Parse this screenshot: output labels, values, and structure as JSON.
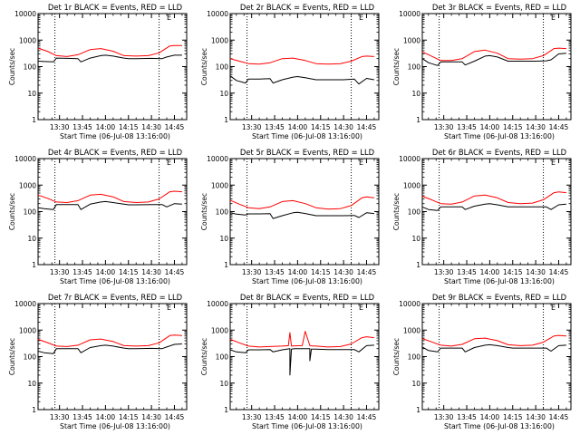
{
  "panel_labels": {
    "x_ticks": [
      "13:30",
      "13:45",
      "14:00",
      "14:15",
      "14:30",
      "14:45"
    ],
    "y_ticks": [
      "1",
      "10",
      "100",
      "1000",
      "10000"
    ],
    "y_label": "Counts/sec",
    "x_label": "Start Time (06-Jul-08 13:16:00)",
    "e_marker": "E"
  },
  "chart_data": [
    {
      "type": "line",
      "title": "Det 1r BLACK = Events, RED = LLD",
      "xlabel": "Start Time (06-Jul-08 13:16:00)",
      "ylabel": "Counts/sec",
      "yscale": "log",
      "ylim": [
        1,
        10000
      ],
      "vlines": [
        "13:27",
        "14:35"
      ],
      "series": [
        {
          "name": "BLACK = Events",
          "color": "#000000",
          "x": [
            "13:16",
            "13:20",
            "13:26",
            "13:28",
            "13:35",
            "13:42",
            "13:44",
            "13:50",
            "13:57",
            "14:00",
            "14:05",
            "14:12",
            "14:15",
            "14:20",
            "14:30",
            "14:37",
            "14:40",
            "14:45",
            "14:50"
          ],
          "y": [
            160,
            155,
            150,
            210,
            205,
            200,
            150,
            210,
            260,
            270,
            250,
            210,
            200,
            200,
            205,
            200,
            230,
            270,
            270
          ]
        },
        {
          "name": "RED = LLD",
          "color": "#ff0000",
          "x": [
            "13:16",
            "13:22",
            "13:28",
            "13:35",
            "13:42",
            "13:50",
            "13:57",
            "14:05",
            "14:12",
            "14:20",
            "14:28",
            "14:35",
            "14:42",
            "14:45",
            "14:50"
          ],
          "y": [
            500,
            380,
            260,
            240,
            280,
            440,
            480,
            380,
            260,
            250,
            260,
            330,
            600,
            620,
            620
          ]
        }
      ]
    },
    {
      "type": "line",
      "title": "Det 2r BLACK = Events, RED = LLD",
      "xlabel": "Start Time (06-Jul-08 13:16:00)",
      "ylabel": "Counts/sec",
      "yscale": "log",
      "ylim": [
        1,
        10000
      ],
      "vlines": [
        "13:27",
        "14:35"
      ],
      "series": [
        {
          "name": "BLACK = Events",
          "color": "#000000",
          "x": [
            "13:16",
            "13:20",
            "13:26",
            "13:28",
            "13:35",
            "13:42",
            "13:44",
            "13:50",
            "13:57",
            "14:00",
            "14:05",
            "14:12",
            "14:15",
            "14:20",
            "14:30",
            "14:37",
            "14:40",
            "14:45",
            "14:50"
          ],
          "y": [
            45,
            30,
            24,
            34,
            34,
            35,
            24,
            32,
            40,
            42,
            38,
            32,
            32,
            32,
            32,
            34,
            22,
            36,
            32
          ]
        },
        {
          "name": "RED = LLD",
          "color": "#ff0000",
          "x": [
            "13:16",
            "13:22",
            "13:28",
            "13:35",
            "13:42",
            "13:50",
            "13:57",
            "14:05",
            "14:12",
            "14:20",
            "14:28",
            "14:35",
            "14:42",
            "14:45",
            "14:50"
          ],
          "y": [
            200,
            160,
            130,
            125,
            140,
            200,
            210,
            170,
            130,
            125,
            130,
            160,
            240,
            250,
            240
          ]
        }
      ]
    },
    {
      "type": "line",
      "title": "Det 3r BLACK = Events, RED = LLD",
      "xlabel": "Start Time (06-Jul-08 13:16:00)",
      "ylabel": "Counts/sec",
      "yscale": "log",
      "ylim": [
        1,
        10000
      ],
      "vlines": [
        "13:27",
        "14:35"
      ],
      "series": [
        {
          "name": "BLACK = Events",
          "color": "#000000",
          "x": [
            "13:16",
            "13:20",
            "13:26",
            "13:28",
            "13:35",
            "13:42",
            "13:44",
            "13:50",
            "13:57",
            "14:00",
            "14:05",
            "14:12",
            "14:15",
            "14:20",
            "14:30",
            "14:37",
            "14:40",
            "14:45",
            "14:50"
          ],
          "y": [
            200,
            140,
            110,
            150,
            150,
            150,
            115,
            160,
            250,
            260,
            230,
            160,
            160,
            160,
            160,
            165,
            180,
            300,
            320
          ]
        },
        {
          "name": "RED = LLD",
          "color": "#ff0000",
          "x": [
            "13:16",
            "13:22",
            "13:28",
            "13:35",
            "13:42",
            "13:50",
            "13:57",
            "14:05",
            "14:12",
            "14:20",
            "14:28",
            "14:35",
            "14:42",
            "14:45",
            "14:50"
          ],
          "y": [
            360,
            250,
            170,
            170,
            200,
            370,
            420,
            320,
            200,
            190,
            200,
            260,
            480,
            500,
            480
          ]
        }
      ]
    },
    {
      "type": "line",
      "title": "Det 4r BLACK = Events, RED = LLD",
      "xlabel": "Start Time (06-Jul-08 13:16:00)",
      "ylabel": "Counts/sec",
      "yscale": "log",
      "ylim": [
        1,
        10000
      ],
      "vlines": [
        "13:27",
        "14:35"
      ],
      "series": [
        {
          "name": "BLACK = Events",
          "color": "#000000",
          "x": [
            "13:16",
            "13:20",
            "13:26",
            "13:28",
            "13:35",
            "13:42",
            "13:44",
            "13:50",
            "13:57",
            "14:00",
            "14:05",
            "14:12",
            "14:15",
            "14:20",
            "14:30",
            "14:37",
            "14:40",
            "14:45",
            "14:50"
          ],
          "y": [
            140,
            130,
            120,
            185,
            185,
            185,
            120,
            190,
            230,
            240,
            220,
            190,
            180,
            180,
            185,
            185,
            150,
            200,
            190
          ]
        },
        {
          "name": "RED = LLD",
          "color": "#ff0000",
          "x": [
            "13:16",
            "13:22",
            "13:28",
            "13:35",
            "13:42",
            "13:50",
            "13:57",
            "14:05",
            "14:12",
            "14:20",
            "14:28",
            "14:35",
            "14:42",
            "14:45",
            "14:50"
          ],
          "y": [
            420,
            320,
            230,
            220,
            260,
            420,
            450,
            360,
            240,
            220,
            230,
            300,
            560,
            590,
            560
          ]
        }
      ]
    },
    {
      "type": "line",
      "title": "Det 5r BLACK = Events, RED = LLD",
      "xlabel": "Start Time (06-Jul-08 13:16:00)",
      "ylabel": "Counts/sec",
      "yscale": "log",
      "ylim": [
        1,
        10000
      ],
      "vlines": [
        "13:27",
        "14:35"
      ],
      "series": [
        {
          "name": "BLACK = Events",
          "color": "#000000",
          "x": [
            "13:16",
            "13:20",
            "13:26",
            "13:28",
            "13:35",
            "13:42",
            "13:44",
            "13:50",
            "13:57",
            "14:00",
            "14:05",
            "14:12",
            "14:15",
            "14:20",
            "14:30",
            "14:37",
            "14:40",
            "14:45",
            "14:50"
          ],
          "y": [
            90,
            80,
            75,
            82,
            82,
            84,
            55,
            70,
            90,
            95,
            85,
            70,
            70,
            70,
            70,
            72,
            60,
            90,
            85
          ]
        },
        {
          "name": "RED = LLD",
          "color": "#ff0000",
          "x": [
            "13:16",
            "13:22",
            "13:28",
            "13:35",
            "13:42",
            "13:50",
            "13:57",
            "14:05",
            "14:12",
            "14:20",
            "14:28",
            "14:35",
            "14:42",
            "14:45",
            "14:50"
          ],
          "y": [
            270,
            190,
            140,
            130,
            150,
            240,
            260,
            200,
            140,
            125,
            130,
            170,
            330,
            360,
            330
          ]
        }
      ]
    },
    {
      "type": "line",
      "title": "Det 6r BLACK = Events, RED = LLD",
      "xlabel": "Start Time (06-Jul-08 13:16:00)",
      "ylabel": "Counts/sec",
      "yscale": "log",
      "ylim": [
        1,
        10000
      ],
      "vlines": [
        "13:27",
        "14:35"
      ],
      "series": [
        {
          "name": "BLACK = Events",
          "color": "#000000",
          "x": [
            "13:16",
            "13:20",
            "13:26",
            "13:28",
            "13:35",
            "13:42",
            "13:44",
            "13:50",
            "13:57",
            "14:00",
            "14:05",
            "14:12",
            "14:15",
            "14:20",
            "14:30",
            "14:37",
            "14:40",
            "14:45",
            "14:50"
          ],
          "y": [
            150,
            120,
            110,
            150,
            150,
            150,
            120,
            160,
            190,
            200,
            180,
            150,
            150,
            150,
            150,
            150,
            120,
            180,
            190
          ]
        },
        {
          "name": "RED = LLD",
          "color": "#ff0000",
          "x": [
            "13:16",
            "13:22",
            "13:28",
            "13:35",
            "13:42",
            "13:50",
            "13:57",
            "14:05",
            "14:12",
            "14:20",
            "14:28",
            "14:35",
            "14:42",
            "14:45",
            "14:50"
          ],
          "y": [
            380,
            280,
            200,
            190,
            230,
            390,
            420,
            330,
            220,
            200,
            210,
            280,
            520,
            550,
            520
          ]
        }
      ]
    },
    {
      "type": "line",
      "title": "Det 7r BLACK = Events, RED = LLD",
      "xlabel": "Start Time (06-Jul-08 13:16:00)",
      "ylabel": "Counts/sec",
      "yscale": "log",
      "ylim": [
        1,
        10000
      ],
      "vlines": [
        "13:27",
        "14:35"
      ],
      "series": [
        {
          "name": "BLACK = Events",
          "color": "#000000",
          "x": [
            "13:16",
            "13:20",
            "13:26",
            "13:28",
            "13:35",
            "13:42",
            "13:44",
            "13:50",
            "13:57",
            "14:00",
            "14:05",
            "14:12",
            "14:15",
            "14:20",
            "14:30",
            "14:37",
            "14:40",
            "14:45",
            "14:50"
          ],
          "y": [
            160,
            140,
            130,
            200,
            200,
            200,
            140,
            220,
            260,
            270,
            250,
            210,
            200,
            200,
            205,
            200,
            230,
            290,
            300
          ]
        },
        {
          "name": "RED = LLD",
          "color": "#ff0000",
          "x": [
            "13:16",
            "13:22",
            "13:28",
            "13:35",
            "13:42",
            "13:50",
            "13:57",
            "14:05",
            "14:12",
            "14:20",
            "14:28",
            "14:35",
            "14:42",
            "14:45",
            "14:50"
          ],
          "y": [
            450,
            340,
            250,
            240,
            270,
            430,
            460,
            370,
            260,
            250,
            260,
            330,
            620,
            650,
            620
          ]
        }
      ]
    },
    {
      "type": "line",
      "title": "Det 8r BLACK = Events, RED = LLD",
      "xlabel": "Start Time (06-Jul-08 13:16:00)",
      "ylabel": "Counts/sec",
      "yscale": "log",
      "ylim": [
        1,
        10000
      ],
      "vlines": [
        "13:27",
        "14:35"
      ],
      "series": [
        {
          "name": "BLACK = Events",
          "color": "#000000",
          "x": [
            "13:16",
            "13:20",
            "13:26",
            "13:28",
            "13:35",
            "13:42",
            "13:44",
            "13:50",
            "13:55",
            "13:55",
            "13:56",
            "13:58",
            "14:05",
            "14:08",
            "14:08",
            "14:09",
            "14:12",
            "14:20",
            "14:30",
            "14:37",
            "14:40",
            "14:45",
            "14:50"
          ],
          "y": [
            180,
            150,
            140,
            180,
            180,
            185,
            150,
            180,
            200,
            20,
            190,
            200,
            200,
            200,
            70,
            190,
            190,
            185,
            185,
            185,
            150,
            260,
            270
          ]
        },
        {
          "name": "RED = LLD",
          "color": "#ff0000",
          "x": [
            "13:16",
            "13:22",
            "13:28",
            "13:35",
            "13:42",
            "13:50",
            "13:54",
            "13:55",
            "13:56",
            "13:58",
            "14:03",
            "14:05",
            "14:08",
            "14:09",
            "14:12",
            "14:20",
            "14:28",
            "14:35",
            "14:42",
            "14:45",
            "14:50"
          ],
          "y": [
            450,
            330,
            250,
            230,
            240,
            250,
            260,
            800,
            250,
            255,
            260,
            900,
            260,
            255,
            250,
            230,
            240,
            300,
            520,
            560,
            520
          ]
        }
      ]
    },
    {
      "type": "line",
      "title": "Det 9r BLACK = Events, RED = LLD",
      "xlabel": "Start Time (06-Jul-08 13:16:00)",
      "ylabel": "Counts/sec",
      "yscale": "log",
      "ylim": [
        1,
        10000
      ],
      "vlines": [
        "13:27",
        "14:35"
      ],
      "series": [
        {
          "name": "BLACK = Events",
          "color": "#000000",
          "x": [
            "13:16",
            "13:20",
            "13:26",
            "13:28",
            "13:35",
            "13:42",
            "13:44",
            "13:50",
            "13:57",
            "14:00",
            "14:05",
            "14:12",
            "14:15",
            "14:20",
            "14:30",
            "14:37",
            "14:40",
            "14:45",
            "14:50"
          ],
          "y": [
            230,
            170,
            150,
            210,
            210,
            210,
            150,
            220,
            270,
            280,
            260,
            220,
            210,
            210,
            210,
            210,
            160,
            260,
            270
          ]
        },
        {
          "name": "RED = LLD",
          "color": "#ff0000",
          "x": [
            "13:16",
            "13:22",
            "13:28",
            "13:35",
            "13:42",
            "13:50",
            "13:57",
            "14:05",
            "14:12",
            "14:20",
            "14:28",
            "14:35",
            "14:42",
            "14:45",
            "14:50"
          ],
          "y": [
            480,
            360,
            270,
            250,
            290,
            470,
            500,
            400,
            280,
            260,
            270,
            350,
            600,
            630,
            600
          ]
        }
      ]
    }
  ]
}
